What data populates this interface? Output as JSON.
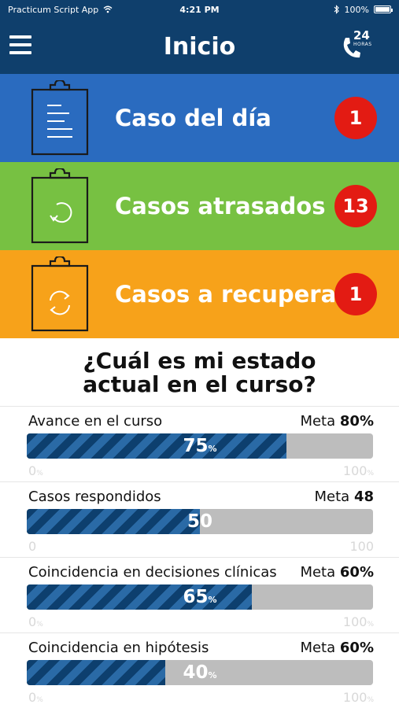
{
  "status_bar": {
    "carrier": "Practicum Script App",
    "time": "4:21 PM",
    "battery": "100%",
    "icons": [
      "wifi-icon",
      "bluetooth-icon",
      "battery-icon"
    ]
  },
  "header": {
    "title": "Inicio",
    "phone_badge_number": "24",
    "phone_badge_text": "HORAS"
  },
  "cases": [
    {
      "label": "Caso del día",
      "count": "1",
      "color": "#2a6bbf",
      "icon": "clipboard-list-icon"
    },
    {
      "label": "Casos atrasados",
      "count": "13",
      "color": "#77c142",
      "icon": "clipboard-refresh-icon"
    },
    {
      "label": "Casos a recuperar",
      "count": "1",
      "color": "#f7a21a",
      "icon": "clipboard-sync-icon"
    }
  ],
  "progress_section": {
    "question": "¿Cuál es mi estado actual en el curso?",
    "metrics": [
      {
        "label": "Avance en el curso",
        "goal_prefix": "Meta",
        "goal_value": "80",
        "goal_unit": "%",
        "value": "75",
        "value_unit": "%",
        "fill_fraction": 0.75,
        "min": "0",
        "min_unit": "%",
        "max": "100",
        "max_unit": "%"
      },
      {
        "label": "Casos respondidos",
        "goal_prefix": "Meta",
        "goal_value": "48",
        "goal_unit": "",
        "value": "50",
        "value_unit": "",
        "fill_fraction": 0.5,
        "min": "0",
        "min_unit": "",
        "max": "100",
        "max_unit": ""
      },
      {
        "label": "Coincidencia en decisiones clínicas",
        "goal_prefix": "Meta",
        "goal_value": "60",
        "goal_unit": "%",
        "value": "65",
        "value_unit": "%",
        "fill_fraction": 0.65,
        "min": "0",
        "min_unit": "%",
        "max": "100",
        "max_unit": "%"
      },
      {
        "label": "Coincidencia en hipótesis",
        "goal_prefix": "Meta",
        "goal_value": "60",
        "goal_unit": "%",
        "value": "40",
        "value_unit": "%",
        "fill_fraction": 0.4,
        "min": "0",
        "min_unit": "%",
        "max": "100",
        "max_unit": "%"
      }
    ]
  },
  "colors": {
    "header_bg": "#0f3f6c",
    "badge_red": "#e31b13",
    "bar_dark": "#0d3f6e",
    "bar_track": "#bdbdbd"
  }
}
